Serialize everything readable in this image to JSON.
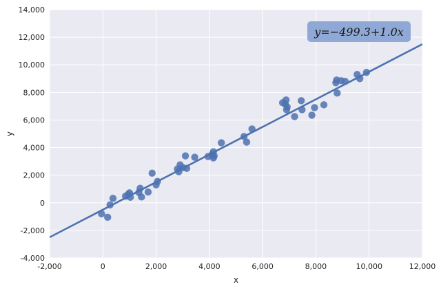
{
  "chart_data": {
    "type": "scatter",
    "title": "",
    "xlabel": "x",
    "ylabel": "y",
    "xlim": [
      -2000,
      12000
    ],
    "ylim": [
      -4000,
      14000
    ],
    "x_ticks": [
      -2000,
      0,
      2000,
      4000,
      6000,
      8000,
      10000,
      12000
    ],
    "y_ticks": [
      -4000,
      -2000,
      0,
      2000,
      4000,
      6000,
      8000,
      10000,
      12000,
      14000
    ],
    "x_tick_labels": [
      "-2,000",
      "0",
      "2,000",
      "4,000",
      "6,000",
      "8,000",
      "10,000",
      "12,000"
    ],
    "y_tick_labels": [
      "-4,000",
      "-2,000",
      "0",
      "2,000",
      "4,000",
      "6,000",
      "8,000",
      "10,000",
      "12,000",
      "14,000"
    ],
    "grid": true,
    "colors": {
      "background": "#EAEAF2",
      "grid": "#FFFFFF",
      "points": "#4C72B0",
      "line": "#4C72B0",
      "annotation_box": "#8FA8D6"
    },
    "series": [
      {
        "kind": "scatter",
        "points": [
          [
            -50,
            -800
          ],
          [
            180,
            -1050
          ],
          [
            270,
            -150
          ],
          [
            380,
            320
          ],
          [
            850,
            480
          ],
          [
            950,
            600
          ],
          [
            1000,
            720
          ],
          [
            1030,
            400
          ],
          [
            1350,
            750
          ],
          [
            1400,
            1050
          ],
          [
            1450,
            420
          ],
          [
            1700,
            780
          ],
          [
            1850,
            2150
          ],
          [
            2000,
            1300
          ],
          [
            2050,
            1550
          ],
          [
            2800,
            2450
          ],
          [
            2850,
            2250
          ],
          [
            2900,
            2750
          ],
          [
            3000,
            2550
          ],
          [
            3100,
            3400
          ],
          [
            3150,
            2500
          ],
          [
            3450,
            3300
          ],
          [
            3950,
            3350
          ],
          [
            4100,
            3500
          ],
          [
            4150,
            3700
          ],
          [
            4150,
            3250
          ],
          [
            4180,
            3400
          ],
          [
            4450,
            4350
          ],
          [
            5300,
            4800
          ],
          [
            5400,
            4400
          ],
          [
            5600,
            5350
          ],
          [
            6750,
            7250
          ],
          [
            6850,
            7150
          ],
          [
            6880,
            7450
          ],
          [
            6900,
            6750
          ],
          [
            6920,
            6950
          ],
          [
            7200,
            6250
          ],
          [
            7450,
            7400
          ],
          [
            7480,
            6750
          ],
          [
            7850,
            6350
          ],
          [
            7950,
            6900
          ],
          [
            8300,
            7100
          ],
          [
            8750,
            8700
          ],
          [
            8780,
            8900
          ],
          [
            8800,
            7950
          ],
          [
            8950,
            8850
          ],
          [
            9100,
            8800
          ],
          [
            9550,
            9300
          ],
          [
            9650,
            9000
          ],
          [
            9900,
            9450
          ]
        ]
      },
      {
        "kind": "line",
        "fit": {
          "intercept": -499.3,
          "slope": 1.0
        },
        "x_range": [
          -2000,
          12000
        ]
      }
    ],
    "annotations": [
      {
        "text": "y=−499.3+1.0x",
        "placement": "top-right"
      }
    ]
  }
}
